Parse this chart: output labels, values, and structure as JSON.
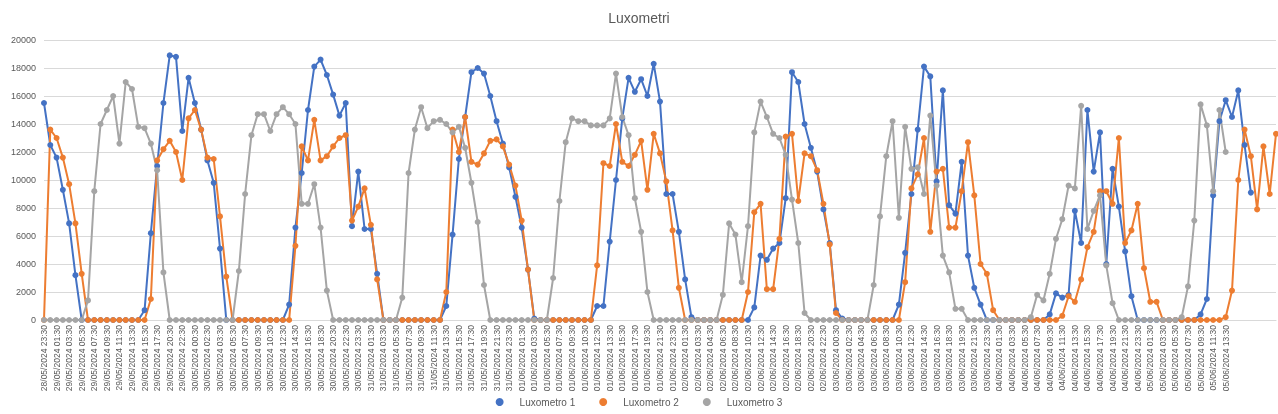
{
  "chart_data": {
    "type": "line",
    "title": "Luxometri",
    "categories": [
      "28/05/2024 23:30",
      null,
      "29/05/2024 01:30",
      null,
      "29/05/2024 03:30",
      null,
      "29/05/2024 05:30",
      null,
      "29/05/2024 07:30",
      null,
      "29/05/2024 09:30",
      null,
      "29/05/2024 11:30",
      null,
      "29/05/2024 13:30",
      null,
      "29/05/2024 15:30",
      null,
      "29/05/2024 17:30",
      null,
      "29/05/2024 20:30",
      null,
      "29/05/2024 22:30",
      null,
      "30/05/2024 00:30",
      null,
      "30/05/2024 02:30",
      null,
      "30/05/2024 03:30",
      null,
      "30/05/2024 05:30",
      null,
      "30/05/2024 07:30",
      null,
      "30/05/2024 09:30",
      null,
      "30/05/2024 10:30",
      null,
      "30/05/2024 12:30",
      null,
      "30/05/2024 14:30",
      null,
      "30/05/2024 16:30",
      null,
      "30/05/2024 18:30",
      null,
      "30/05/2024 20:30",
      null,
      "30/05/2024 22:30",
      null,
      "30/05/2024 23:30",
      null,
      "31/05/2024 01:30",
      null,
      "31/05/2024 03:30",
      null,
      "31/05/2024 05:30",
      null,
      "31/05/2024 07:30",
      null,
      "31/05/2024 09:30",
      null,
      "31/05/2024 11:30",
      null,
      "31/05/2024 13:30",
      null,
      "31/05/2024 15:30",
      null,
      "31/05/2024 17:30",
      null,
      "31/05/2024 19:30",
      null,
      "31/05/2024 21:30",
      null,
      "31/05/2024 23:30",
      null,
      "01/06/2024 01:30",
      null,
      "01/06/2024 03:30",
      null,
      "01/06/2024 05:30",
      null,
      "01/06/2024 07:30",
      null,
      "01/06/2024 09:30",
      null,
      "01/06/2024 10:30",
      null,
      "01/06/2024 12:30",
      null,
      "01/06/2024 13:30",
      null,
      "01/06/2024 15:30",
      null,
      "01/06/2024 17:30",
      null,
      "01/06/2024 19:30",
      null,
      "01/06/2024 21:30",
      null,
      "01/06/2024 23:30",
      null,
      "02/06/2024 01:30",
      null,
      "02/06/2024 03:30",
      null,
      "02/06/2024 04:30",
      null,
      "02/06/2024 06:30",
      null,
      "02/06/2024 08:30",
      null,
      "02/06/2024 10:30",
      null,
      "02/06/2024 12:30",
      null,
      "02/06/2024 14:30",
      null,
      "02/06/2024 16:30",
      null,
      "02/06/2024 18:30",
      null,
      "02/06/2024 20:30",
      null,
      "02/06/2024 22:30",
      null,
      "03/06/2024 00:30",
      null,
      "03/06/2024 02:30",
      null,
      "03/06/2024 04:30",
      null,
      "03/06/2024 06:30",
      null,
      "03/06/2024 08:30",
      null,
      "03/06/2024 10:30",
      null,
      "03/06/2024 12:30",
      null,
      "03/06/2024 14:30",
      null,
      "03/06/2024 16:30",
      null,
      "03/06/2024 18:30",
      null,
      "03/06/2024 19:30",
      null,
      "03/06/2024 21:30",
      null,
      "03/06/2024 23:30",
      null,
      "04/06/2024 01:30",
      null,
      "04/06/2024 03:30",
      null,
      "04/06/2024 05:30",
      null,
      "04/06/2024 07:30",
      null,
      "04/06/2024 09:30",
      null,
      "04/06/2024 11:30",
      null,
      "04/06/2024 13:30",
      null,
      "04/06/2024 15:30",
      null,
      "04/06/2024 17:30",
      null,
      "04/06/2024 19:30",
      null,
      "04/06/2024 21:30",
      null,
      "04/06/2024 23:30",
      null,
      "05/06/2024 01:30",
      null,
      "05/06/2024 03:30",
      null,
      "05/06/2024 05:30",
      null,
      "05/06/2024 07:30",
      null,
      "05/06/2024 09:30",
      null,
      "05/06/2024 11:30",
      null,
      "05/06/2024 13:30",
      null,
      null,
      null,
      null,
      null,
      null,
      null,
      null
    ],
    "series": [
      {
        "name": "Luxometro 1",
        "color": "#4472c4",
        "values": [
          15500,
          12500,
          11600,
          9300,
          6900,
          3200,
          0,
          0,
          0,
          0,
          0,
          0,
          0,
          0,
          0,
          0,
          700,
          6200,
          11000,
          15500,
          18900,
          18800,
          13500,
          17300,
          15500,
          13600,
          11400,
          9800,
          5100,
          0,
          0,
          0,
          0,
          0,
          0,
          0,
          0,
          0,
          0,
          1100,
          6600,
          10500,
          15000,
          18100,
          18600,
          17500,
          16100,
          14600,
          15500,
          6700,
          10600,
          6500,
          6500,
          3300,
          0,
          0,
          0,
          0,
          0,
          0,
          0,
          0,
          0,
          0,
          1000,
          6100,
          11500,
          14500,
          17700,
          18000,
          17600,
          16000,
          14200,
          12600,
          10900,
          8800,
          6600,
          3600,
          100,
          0,
          0,
          0,
          0,
          0,
          0,
          0,
          0,
          0,
          1000,
          1000,
          5600,
          10000,
          14400,
          17300,
          16300,
          17200,
          16000,
          18300,
          15600,
          9000,
          9000,
          6300,
          2900,
          200,
          0,
          0,
          0,
          0,
          0,
          0,
          0,
          0,
          0,
          900,
          4600,
          4300,
          5100,
          5500,
          8700,
          17700,
          17000,
          14000,
          12300,
          10600,
          7900,
          5500,
          700,
          100,
          0,
          0,
          0,
          0,
          0,
          0,
          0,
          0,
          1100,
          4800,
          9000,
          13600,
          18100,
          17400,
          9900,
          16400,
          8200,
          7600,
          11300,
          4600,
          2300,
          1100,
          0,
          0,
          0,
          0,
          0,
          0,
          0,
          0,
          0,
          0,
          400,
          1900,
          1600,
          1800,
          7800,
          5500,
          15000,
          10600,
          13400,
          4000,
          10800,
          8100,
          4900,
          1700,
          0,
          0,
          0,
          0,
          0,
          0,
          0,
          0,
          0,
          0,
          400,
          1500,
          8900,
          14200,
          15700,
          14500,
          16400,
          12500,
          9100,
          null,
          null,
          null,
          null
        ]
      },
      {
        "name": "Luxometro 2",
        "color": "#ed7d31",
        "values": [
          0,
          13600,
          13000,
          11600,
          9700,
          6900,
          3300,
          0,
          0,
          0,
          0,
          0,
          0,
          0,
          0,
          0,
          0,
          1500,
          11400,
          12200,
          12800,
          12000,
          10000,
          14400,
          15000,
          13600,
          11600,
          11500,
          7400,
          3100,
          0,
          0,
          0,
          0,
          0,
          0,
          0,
          0,
          0,
          0,
          5300,
          12400,
          11400,
          14300,
          11400,
          11700,
          12400,
          13000,
          13200,
          7100,
          8100,
          9400,
          6800,
          2900,
          0,
          0,
          0,
          0,
          0,
          0,
          0,
          0,
          0,
          0,
          2000,
          13600,
          12000,
          14500,
          11300,
          11100,
          11900,
          12800,
          12900,
          12400,
          11100,
          9600,
          7100,
          3600,
          0,
          0,
          0,
          0,
          0,
          0,
          0,
          0,
          0,
          0,
          3900,
          11200,
          11000,
          14000,
          11300,
          11000,
          11800,
          12800,
          9300,
          13300,
          11900,
          9900,
          6400,
          2300,
          0,
          0,
          0,
          0,
          0,
          0,
          0,
          0,
          0,
          0,
          2000,
          7700,
          8300,
          2200,
          2200,
          5800,
          13100,
          13300,
          8500,
          11900,
          11700,
          10700,
          8300,
          5400,
          500,
          0,
          0,
          0,
          0,
          0,
          0,
          0,
          0,
          0,
          0,
          2700,
          9400,
          10400,
          13000,
          6300,
          10600,
          10800,
          6600,
          6600,
          9200,
          12700,
          8900,
          4000,
          3300,
          700,
          0,
          0,
          0,
          0,
          0,
          0,
          0,
          0,
          0,
          0,
          300,
          1700,
          1300,
          2900,
          5200,
          6300,
          9200,
          9200,
          8300,
          13000,
          5500,
          6400,
          8300,
          3700,
          1300,
          1300,
          0,
          0,
          0,
          0,
          0,
          0,
          0,
          0,
          0,
          0,
          200,
          2100,
          10000,
          13600,
          11700,
          7900,
          12400,
          9000,
          13300
        ]
      },
      {
        "name": "Luxometro 3",
        "color": "#a5a5a5",
        "values": [
          0,
          0,
          0,
          0,
          0,
          0,
          0,
          1400,
          9200,
          14000,
          15000,
          16000,
          12600,
          17000,
          16500,
          13800,
          13700,
          12600,
          10700,
          3400,
          0,
          0,
          0,
          0,
          0,
          0,
          0,
          0,
          0,
          0,
          0,
          3500,
          9000,
          13200,
          14700,
          14700,
          13500,
          14700,
          15200,
          14700,
          14000,
          8300,
          8300,
          9700,
          6600,
          2100,
          0,
          0,
          0,
          0,
          0,
          0,
          0,
          0,
          0,
          0,
          0,
          1600,
          10500,
          13600,
          15200,
          13700,
          14200,
          14300,
          14000,
          13400,
          13800,
          12300,
          9800,
          7000,
          2500,
          0,
          0,
          0,
          0,
          0,
          0,
          0,
          0,
          0,
          0,
          3000,
          8500,
          12700,
          14400,
          14200,
          14200,
          13900,
          13900,
          13900,
          14400,
          17600,
          14500,
          13200,
          8700,
          6300,
          2000,
          0,
          0,
          0,
          0,
          0,
          0,
          0,
          0,
          0,
          0,
          0,
          1800,
          6900,
          6100,
          2700,
          6700,
          13400,
          15600,
          14500,
          13300,
          13000,
          11800,
          8600,
          5500,
          500,
          0,
          0,
          0,
          0,
          0,
          0,
          0,
          0,
          0,
          0,
          2500,
          7400,
          11700,
          14200,
          7300,
          13800,
          10800,
          10900,
          9000,
          14600,
          9600,
          4600,
          3400,
          800,
          800,
          0,
          0,
          0,
          0,
          0,
          0,
          0,
          0,
          0,
          0,
          200,
          1800,
          1400,
          3300,
          5800,
          7200,
          9600,
          9400,
          15300,
          6500,
          7800,
          8900,
          3900,
          1200,
          0,
          0,
          0,
          0,
          0,
          0,
          0,
          0,
          0,
          0,
          200,
          2400,
          7100,
          15400,
          13900,
          9200,
          15000,
          12000,
          null,
          null,
          null,
          null,
          null,
          null,
          null,
          null
        ]
      }
    ],
    "ylim": [
      0,
      20000
    ],
    "yticks": [
      0,
      2000,
      4000,
      6000,
      8000,
      10000,
      12000,
      14000,
      16000,
      18000,
      20000
    ],
    "grid": "y",
    "legend": "bottom",
    "marker": "circle",
    "line_style": "solid"
  }
}
